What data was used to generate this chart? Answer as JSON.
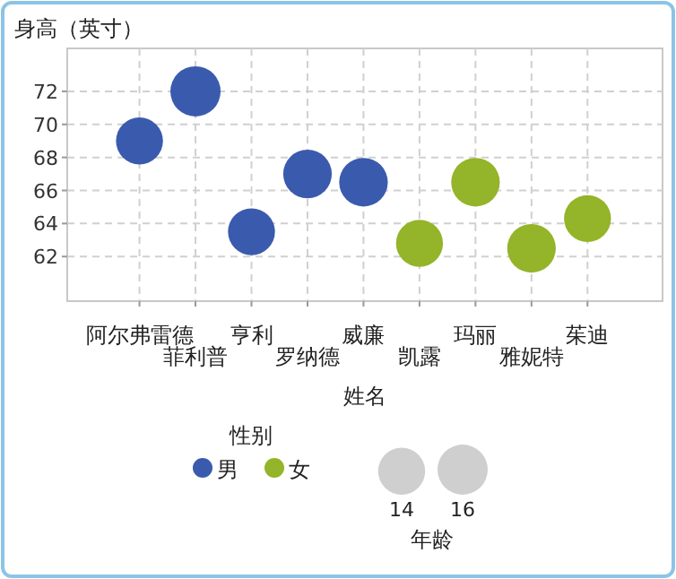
{
  "chart_data": {
    "type": "bubble",
    "xlabel": "姓名",
    "ylabel": "身高（英寸）",
    "legend_title": "性别",
    "annotations": [
      "年龄"
    ],
    "categories": [
      "阿尔弗雷德",
      "菲利普",
      "亨利",
      "罗纳德",
      "威廉",
      "凯露",
      "玛丽",
      "雅妮特",
      "茱迪"
    ],
    "series": [
      {
        "name": "男",
        "color": "#3a5bad",
        "values": [
          69,
          72,
          63.5,
          67,
          66.5,
          null,
          null,
          null,
          null
        ],
        "sizes": [
          14,
          16,
          14,
          15,
          15,
          null,
          null,
          null,
          null
        ]
      },
      {
        "name": "女",
        "color": "#94b429",
        "values": [
          null,
          null,
          null,
          null,
          null,
          62.8,
          66.5,
          62.5,
          64.3
        ],
        "sizes": [
          null,
          null,
          null,
          null,
          null,
          14,
          15,
          15,
          14
        ]
      }
    ],
    "size_legend": [
      14,
      16
    ],
    "ylim": [
      59.3,
      74.6
    ],
    "yticks": [
      62,
      64,
      66,
      68,
      70,
      72
    ],
    "grid": true,
    "legend": "bottom"
  }
}
